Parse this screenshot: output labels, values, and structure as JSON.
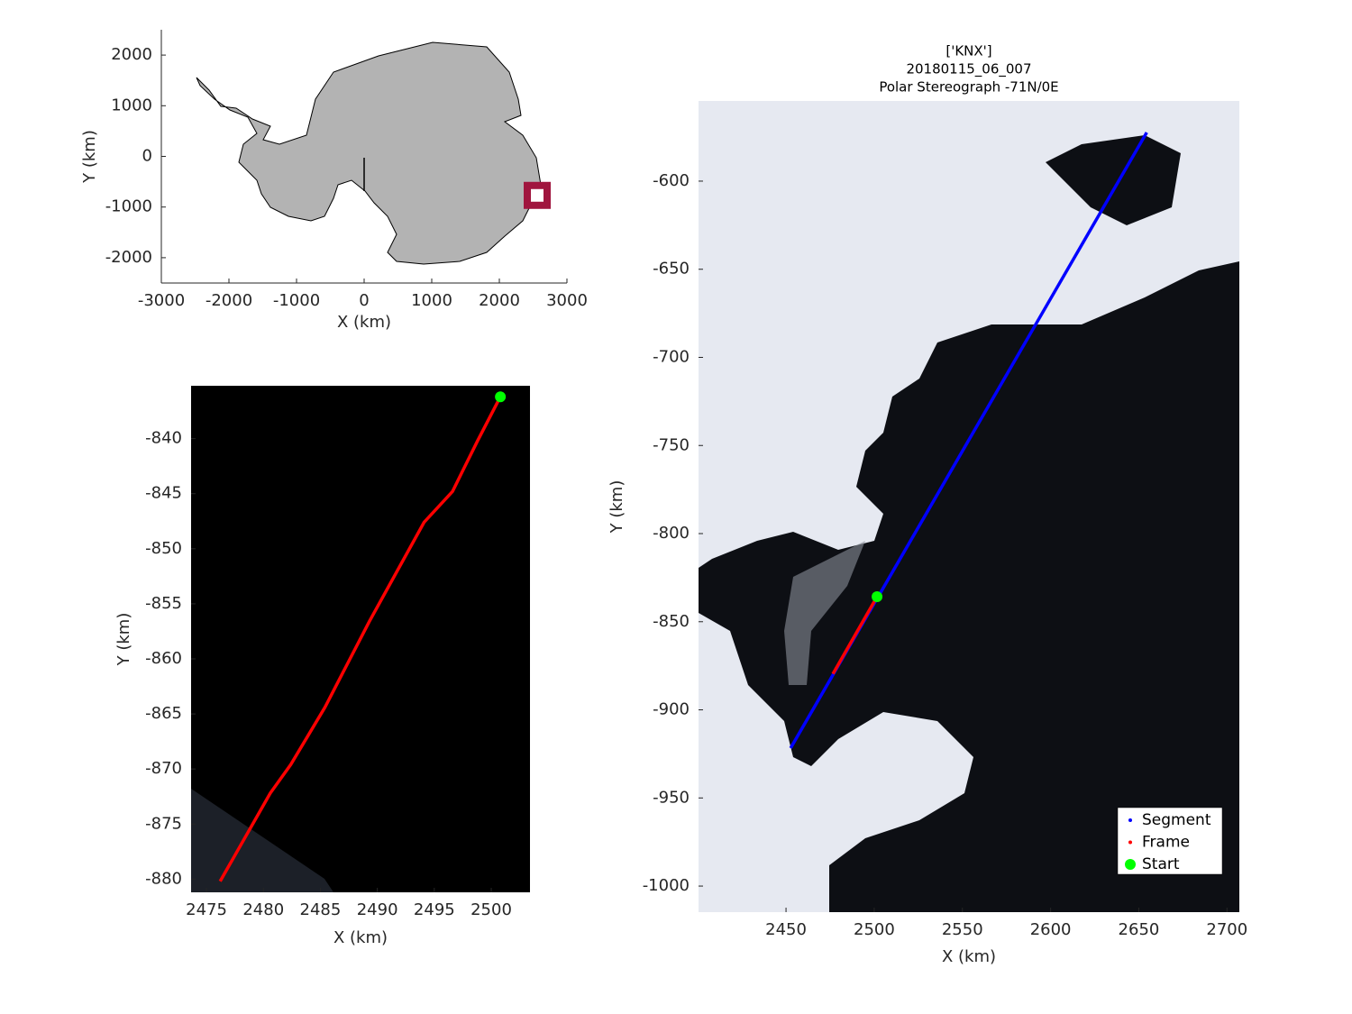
{
  "chart_data": [
    {
      "type": "map",
      "xlabel": "X (km)",
      "ylabel": "Y (km)",
      "xlim": [
        -3000,
        3000
      ],
      "ylim": [
        -2500,
        2500
      ],
      "xticks": [
        -3000,
        -2000,
        -1000,
        0,
        1000,
        2000,
        3000
      ],
      "yticks": [
        -2000,
        -1000,
        0,
        1000,
        2000
      ],
      "marker": {
        "x": 2560,
        "y": -770,
        "color": "#a0153e"
      }
    },
    {
      "type": "line",
      "xlabel": "X (km)",
      "ylabel": "Y (km)",
      "xlim": [
        2473.65,
        2503.4
      ],
      "ylim": [
        -881.2,
        -835.2
      ],
      "xticks": [
        2475,
        2480,
        2485,
        2490,
        2495,
        2500
      ],
      "yticks": [
        -880,
        -875,
        -870,
        -865,
        -860,
        -855,
        -850,
        -845,
        -840
      ],
      "series": [
        {
          "color": "#ff0000",
          "marker": "line",
          "x": [
            2476.2,
            2480.6,
            2482.4,
            2485.4,
            2489.3,
            2494.1,
            2496.6,
            2497.6,
            2498.8,
            2500.8
          ],
          "values": [
            -880.2,
            -872.2,
            -869.6,
            -864.4,
            -856.6,
            -847.6,
            -844.8,
            -842.7,
            -840.2,
            -836.2
          ]
        },
        {
          "color": "#00ff00",
          "marker": "dot",
          "x": [
            2500.8
          ],
          "values": [
            -836.2
          ]
        }
      ]
    },
    {
      "type": "line",
      "title": [
        "['KNX']",
        "20180115_06_007",
        "Polar Stereograph -71N/0E"
      ],
      "xlabel": "X (km)",
      "ylabel": "Y (km)",
      "xlim": [
        2400.4,
        2707
      ],
      "ylim": [
        -1014.8,
        -554.5
      ],
      "xticks": [
        2450,
        2500,
        2550,
        2600,
        2650,
        2700
      ],
      "yticks": [
        -1000,
        -950,
        -900,
        -850,
        -800,
        -750,
        -700,
        -650,
        -600
      ],
      "legend": "lower right",
      "series": [
        {
          "name": "Segment",
          "color": "#0000ff",
          "marker": "line",
          "x": [
            2452.6,
            2654.5
          ],
          "values": [
            -921.7,
            -572.4
          ]
        },
        {
          "name": "Frame",
          "color": "#ff0000",
          "marker": "line",
          "x": [
            2476.6,
            2501.6
          ],
          "values": [
            -879.6,
            -835.8
          ]
        },
        {
          "name": "Start",
          "color": "#00ff00",
          "marker": "dot",
          "x": [
            2501.6
          ],
          "values": [
            -835.8
          ]
        }
      ]
    }
  ]
}
